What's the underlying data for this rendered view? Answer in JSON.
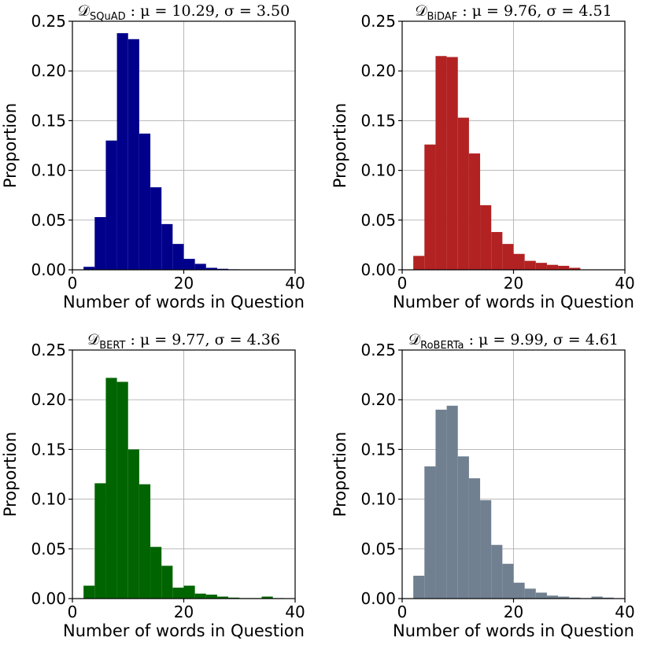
{
  "chart_data": [
    {
      "type": "bar",
      "title": {
        "main": "𝒟",
        "sub": "SQuAD",
        "rest": " :  μ = 10.29,  σ = 3.50"
      },
      "xlabel": "Number of words in Question",
      "ylabel": "Proportion",
      "xlim": [
        0,
        40
      ],
      "ylim": [
        0,
        0.25
      ],
      "xticks": [
        "0",
        "20",
        "40"
      ],
      "yticks": [
        "0.00",
        "0.05",
        "0.10",
        "0.15",
        "0.20",
        "0.25"
      ],
      "grid": true,
      "color": "#00008b",
      "bin_edges": [
        2,
        4,
        6,
        8,
        10,
        12,
        14,
        16,
        18,
        20,
        22,
        24,
        26,
        28,
        30
      ],
      "values": [
        0.003,
        0.053,
        0.13,
        0.238,
        0.232,
        0.137,
        0.083,
        0.046,
        0.026,
        0.011,
        0.006,
        0.002,
        0.001,
        0.0005
      ]
    },
    {
      "type": "bar",
      "title": {
        "main": "𝒟",
        "sub": "BiDAF",
        "rest": " :  μ = 9.76,  σ = 4.51"
      },
      "xlabel": "Number of words in Question",
      "ylabel": "Proportion",
      "xlim": [
        0,
        40
      ],
      "ylim": [
        0,
        0.25
      ],
      "xticks": [
        "0",
        "20",
        "40"
      ],
      "yticks": [
        "0.00",
        "0.05",
        "0.10",
        "0.15",
        "0.20",
        "0.25"
      ],
      "grid": true,
      "color": "#b22222",
      "bin_edges": [
        2,
        4,
        6,
        8,
        10,
        12,
        14,
        16,
        18,
        20,
        22,
        24,
        26,
        28,
        30,
        32
      ],
      "values": [
        0.014,
        0.126,
        0.215,
        0.214,
        0.153,
        0.117,
        0.065,
        0.038,
        0.026,
        0.016,
        0.009,
        0.007,
        0.005,
        0.004,
        0.002
      ]
    },
    {
      "type": "bar",
      "title": {
        "main": "𝒟",
        "sub": "BERT",
        "rest": " :  μ = 9.77,  σ = 4.36"
      },
      "xlabel": "Number of words in Question",
      "ylabel": "Proportion",
      "xlim": [
        0,
        40
      ],
      "ylim": [
        0,
        0.25
      ],
      "xticks": [
        "0",
        "20",
        "40"
      ],
      "yticks": [
        "0.00",
        "0.05",
        "0.10",
        "0.15",
        "0.20",
        "0.25"
      ],
      "grid": true,
      "color": "#006400",
      "bin_edges": [
        2,
        4,
        6,
        8,
        10,
        12,
        14,
        16,
        18,
        20,
        22,
        24,
        26,
        28,
        30,
        32,
        34,
        36,
        38
      ],
      "values": [
        0.013,
        0.116,
        0.222,
        0.218,
        0.15,
        0.115,
        0.052,
        0.033,
        0.011,
        0.013,
        0.005,
        0.004,
        0.002,
        0.001,
        0.0005,
        0.0005,
        0.002,
        0.0005
      ]
    },
    {
      "type": "bar",
      "title": {
        "main": "𝒟",
        "sub": "RoBERTa",
        "rest": " :  μ = 9.99,  σ = 4.61"
      },
      "xlabel": "Number of words in Question",
      "ylabel": "Proportion",
      "xlim": [
        0,
        40
      ],
      "ylim": [
        0,
        0.25
      ],
      "xticks": [
        "0",
        "20",
        "40"
      ],
      "yticks": [
        "0.00",
        "0.05",
        "0.10",
        "0.15",
        "0.20",
        "0.25"
      ],
      "grid": true,
      "color": "#708090",
      "bin_edges": [
        2,
        4,
        6,
        8,
        10,
        12,
        14,
        16,
        18,
        20,
        22,
        24,
        26,
        28,
        30,
        32,
        34,
        36,
        38
      ],
      "values": [
        0.023,
        0.133,
        0.19,
        0.194,
        0.143,
        0.121,
        0.099,
        0.054,
        0.035,
        0.016,
        0.01,
        0.006,
        0.003,
        0.002,
        0.001,
        0.0005,
        0.002,
        0.001
      ]
    }
  ]
}
